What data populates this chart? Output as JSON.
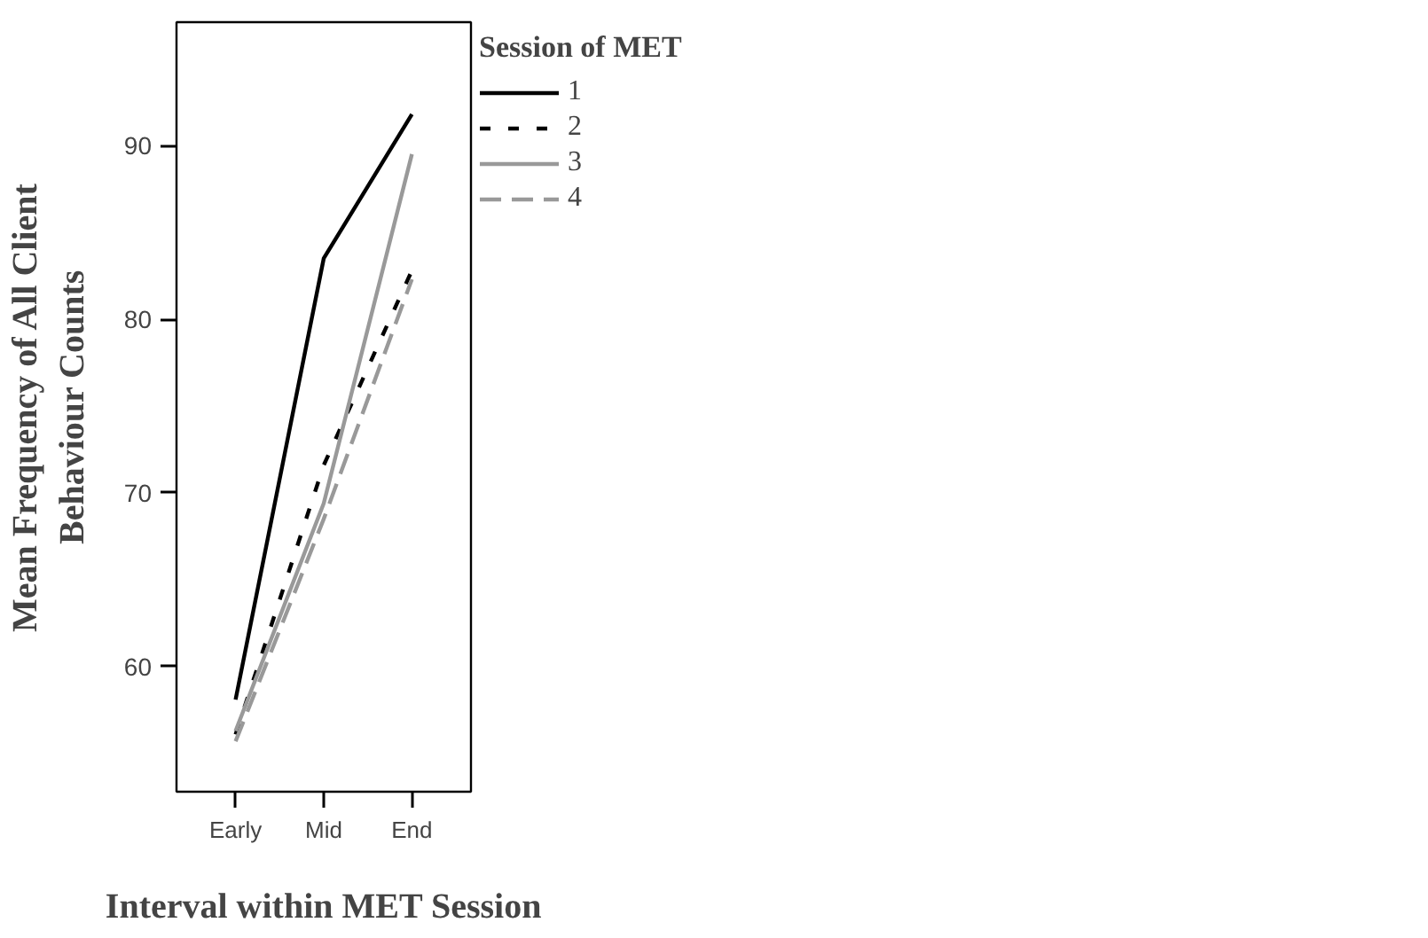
{
  "chart_data": {
    "type": "line",
    "xlabel": "Interval within MET Session",
    "ylabel": "Mean Frequency of All Client\nBehaviour Counts",
    "legend_title": "Session of MET",
    "categories": [
      "Early",
      "Mid",
      "End"
    ],
    "series": [
      {
        "name": "1",
        "color": "#000000",
        "line_style": "solid",
        "values": [
          58.1,
          83.5,
          91.8
        ]
      },
      {
        "name": "2",
        "color": "#000000",
        "line_style": "dotted",
        "values": [
          56.1,
          71.6,
          82.8
        ]
      },
      {
        "name": "3",
        "color": "#999999",
        "line_style": "solid",
        "values": [
          56.3,
          69.4,
          89.5
        ]
      },
      {
        "name": "4",
        "color": "#999999",
        "line_style": "dashed",
        "values": [
          55.7,
          68.5,
          82.3
        ]
      }
    ],
    "ylim": [
      52.8,
      97.1
    ],
    "yticks": [
      60,
      70,
      80,
      90
    ],
    "grid": false,
    "legend": "right",
    "marker": "none"
  }
}
